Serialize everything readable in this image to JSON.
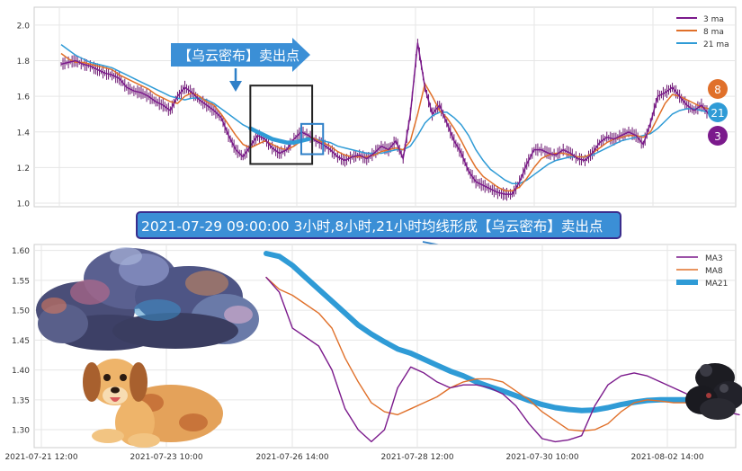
{
  "banner_top": "【乌云密布】卖出点",
  "banner_mid": "2021-07-29 09:00:00 3小时,8小时,21小时均线形成【乌云密布】卖出点",
  "badges": {
    "ma8": "8",
    "ma21": "21",
    "ma3": "3"
  },
  "colors": {
    "ma3": "#7b1a8c",
    "ma8": "#e0702a",
    "ma21": "#2f9bd6",
    "candle": "#6b1670",
    "banner_bg": "#3b8fd6",
    "banner_border": "#3a2d8c"
  },
  "chart_data": [
    {
      "type": "line",
      "title": "",
      "ylim": [
        0.98,
        2.1
      ],
      "yticks": [
        "1.0",
        "1.2",
        "1.4",
        "1.6",
        "1.8",
        "2.0"
      ],
      "grid": true,
      "legend_position": "top-right",
      "legend": [
        "3 ma",
        "8 ma",
        "21 ma"
      ],
      "t": [
        0,
        4,
        8,
        12,
        16,
        20,
        24,
        28,
        32,
        36,
        40,
        44,
        48,
        52,
        56,
        60,
        64,
        68,
        72,
        76,
        80,
        84,
        88,
        92,
        96,
        100,
        104,
        108,
        112,
        116,
        120,
        124,
        128,
        132,
        136,
        140,
        144,
        148,
        152,
        156,
        160,
        164,
        168,
        172,
        176,
        180,
        184,
        188,
        192,
        196,
        200,
        204,
        208,
        212,
        216,
        220,
        224,
        228,
        232,
        236,
        240,
        244,
        248,
        252,
        256,
        260,
        264,
        268,
        272,
        276,
        280,
        284,
        288,
        292,
        296,
        300,
        304,
        308,
        312,
        316,
        320,
        324,
        328,
        332,
        336,
        340,
        344,
        348,
        352,
        356
      ],
      "series": [
        {
          "name": "3 ma",
          "values": [
            1.78,
            1.79,
            1.8,
            1.78,
            1.77,
            1.75,
            1.73,
            1.72,
            1.7,
            1.65,
            1.63,
            1.62,
            1.6,
            1.57,
            1.55,
            1.52,
            1.6,
            1.65,
            1.62,
            1.58,
            1.55,
            1.52,
            1.48,
            1.38,
            1.3,
            1.26,
            1.32,
            1.38,
            1.36,
            1.31,
            1.28,
            1.3,
            1.36,
            1.4,
            1.38,
            1.35,
            1.33,
            1.3,
            1.26,
            1.24,
            1.26,
            1.27,
            1.25,
            1.28,
            1.32,
            1.3,
            1.35,
            1.25,
            1.5,
            1.9,
            1.65,
            1.5,
            1.55,
            1.45,
            1.35,
            1.28,
            1.18,
            1.12,
            1.1,
            1.08,
            1.06,
            1.05,
            1.05,
            1.12,
            1.22,
            1.3,
            1.3,
            1.28,
            1.27,
            1.3,
            1.28,
            1.25,
            1.24,
            1.28,
            1.34,
            1.37,
            1.36,
            1.38,
            1.4,
            1.38,
            1.33,
            1.45,
            1.6,
            1.62,
            1.65,
            1.6,
            1.55,
            1.52,
            1.55,
            1.5
          ]
        },
        {
          "name": "8 ma",
          "values": [
            1.84,
            1.81,
            1.79,
            1.79,
            1.78,
            1.77,
            1.76,
            1.75,
            1.72,
            1.7,
            1.68,
            1.66,
            1.64,
            1.61,
            1.59,
            1.57,
            1.56,
            1.6,
            1.62,
            1.6,
            1.57,
            1.55,
            1.5,
            1.44,
            1.38,
            1.33,
            1.31,
            1.33,
            1.35,
            1.33,
            1.31,
            1.3,
            1.32,
            1.35,
            1.37,
            1.36,
            1.34,
            1.32,
            1.29,
            1.27,
            1.26,
            1.26,
            1.26,
            1.27,
            1.29,
            1.3,
            1.31,
            1.3,
            1.35,
            1.5,
            1.67,
            1.6,
            1.52,
            1.48,
            1.42,
            1.35,
            1.27,
            1.2,
            1.15,
            1.12,
            1.09,
            1.07,
            1.07,
            1.09,
            1.14,
            1.2,
            1.25,
            1.27,
            1.28,
            1.28,
            1.27,
            1.26,
            1.26,
            1.28,
            1.31,
            1.34,
            1.36,
            1.37,
            1.38,
            1.38,
            1.37,
            1.4,
            1.48,
            1.56,
            1.61,
            1.6,
            1.58,
            1.56,
            1.54,
            1.53
          ]
        },
        {
          "name": "21 ma",
          "values": [
            1.89,
            1.86,
            1.83,
            1.81,
            1.79,
            1.78,
            1.77,
            1.76,
            1.74,
            1.72,
            1.7,
            1.68,
            1.66,
            1.64,
            1.62,
            1.6,
            1.59,
            1.58,
            1.59,
            1.59,
            1.58,
            1.56,
            1.53,
            1.5,
            1.47,
            1.44,
            1.42,
            1.4,
            1.38,
            1.36,
            1.35,
            1.34,
            1.34,
            1.35,
            1.36,
            1.36,
            1.35,
            1.34,
            1.32,
            1.31,
            1.3,
            1.29,
            1.28,
            1.28,
            1.28,
            1.29,
            1.3,
            1.3,
            1.32,
            1.38,
            1.45,
            1.49,
            1.51,
            1.51,
            1.48,
            1.44,
            1.38,
            1.3,
            1.24,
            1.19,
            1.16,
            1.13,
            1.11,
            1.11,
            1.13,
            1.16,
            1.19,
            1.22,
            1.24,
            1.25,
            1.26,
            1.26,
            1.26,
            1.27,
            1.29,
            1.31,
            1.33,
            1.35,
            1.36,
            1.37,
            1.38,
            1.39,
            1.42,
            1.46,
            1.5,
            1.52,
            1.53,
            1.53,
            1.52,
            1.51
          ]
        }
      ],
      "highlight_window": [
        104,
        138
      ],
      "highlight_signal": [
        132,
        144
      ]
    },
    {
      "type": "line",
      "title": "",
      "ylim": [
        1.27,
        1.61
      ],
      "yticks": [
        "1.30",
        "1.35",
        "1.40",
        "1.45",
        "1.50",
        "1.55",
        "1.60"
      ],
      "xticks": [
        "2021-07-21 12:00",
        "2021-07-23 10:00",
        "2021-07-26 14:00",
        "2021-07-28 12:00",
        "2021-07-30 10:00",
        "2021-08-02 14:00"
      ],
      "grid": true,
      "legend_position": "top-right",
      "legend": [
        "MA3",
        "MA8",
        "MA21"
      ],
      "x": [
        0,
        1,
        2,
        3,
        4,
        5,
        6,
        7,
        8,
        9,
        10,
        11,
        12,
        13,
        14,
        15,
        16,
        17,
        18,
        19,
        20,
        21,
        22,
        23,
        24,
        25,
        26,
        27,
        28,
        29,
        30,
        31,
        32,
        33,
        34,
        35,
        36
      ],
      "series": [
        {
          "name": "MA3",
          "values": [
            1.555,
            1.53,
            1.47,
            1.455,
            1.44,
            1.4,
            1.335,
            1.3,
            1.28,
            1.3,
            1.37,
            1.405,
            1.395,
            1.38,
            1.37,
            1.375,
            1.375,
            1.37,
            1.36,
            1.34,
            1.31,
            1.285,
            1.28,
            1.283,
            1.29,
            1.34,
            1.375,
            1.39,
            1.395,
            1.39,
            1.38,
            1.37,
            1.36,
            1.35,
            1.34,
            1.33,
            1.325
          ]
        },
        {
          "name": "MA8",
          "values": [
            1.555,
            1.535,
            1.525,
            1.51,
            1.495,
            1.47,
            1.42,
            1.38,
            1.345,
            1.33,
            1.325,
            1.335,
            1.345,
            1.355,
            1.37,
            1.38,
            1.385,
            1.385,
            1.38,
            1.365,
            1.35,
            1.33,
            1.315,
            1.3,
            1.298,
            1.3,
            1.31,
            1.33,
            1.345,
            1.35,
            1.348,
            1.345,
            1.345,
            1.342,
            1.34,
            1.34,
            1.345
          ]
        },
        {
          "name": "MA21",
          "values": [
            1.595,
            1.59,
            1.575,
            1.555,
            1.535,
            1.515,
            1.495,
            1.475,
            1.46,
            1.447,
            1.435,
            1.428,
            1.418,
            1.408,
            1.398,
            1.39,
            1.38,
            1.372,
            1.365,
            1.357,
            1.349,
            1.342,
            1.337,
            1.334,
            1.332,
            1.333,
            1.337,
            1.342,
            1.346,
            1.349,
            1.35,
            1.35,
            1.35,
            1.35,
            1.35,
            1.35,
            1.35
          ]
        }
      ]
    }
  ]
}
